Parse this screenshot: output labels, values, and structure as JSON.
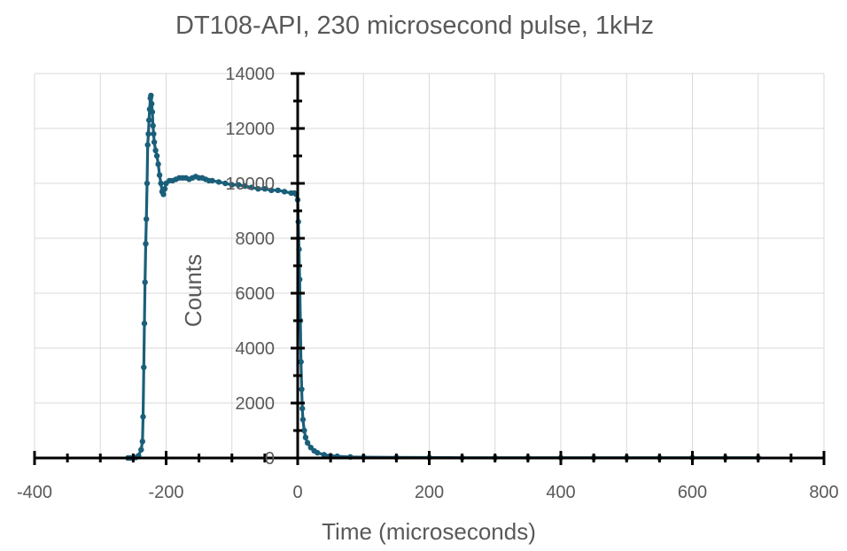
{
  "chart_data": {
    "type": "scatter",
    "title": "DT108-API, 230 microsecond pulse, 1kHz",
    "xlabel": "Time (microseconds)",
    "ylabel": "Counts",
    "xlim": [
      -400,
      800
    ],
    "ylim": [
      0,
      14000
    ],
    "x_ticks": [
      "-400",
      "-200",
      "0",
      "200",
      "400",
      "600",
      "800"
    ],
    "y_ticks": [
      "0",
      "2000",
      "4000",
      "6000",
      "8000",
      "10000",
      "12000",
      "14000"
    ],
    "grid": true,
    "legend": "none",
    "line_color": "#1a5f7a",
    "series": [
      {
        "x": [
          -258,
          -254,
          -250,
          -246,
          -242,
          -238,
          -236,
          -235,
          -234,
          -233,
          -232,
          -231,
          -230,
          -229,
          -228,
          -227,
          -226,
          -225,
          -224,
          -223,
          -222,
          -221,
          -220,
          -219,
          -218,
          -216,
          -214,
          -212,
          -210,
          -208,
          -206,
          -204,
          -202,
          -200,
          -195,
          -190,
          -185,
          -180,
          -175,
          -170,
          -165,
          -160,
          -155,
          -150,
          -145,
          -140,
          -135,
          -130,
          -120,
          -110,
          -100,
          -90,
          -80,
          -70,
          -60,
          -50,
          -40,
          -30,
          -20,
          -10,
          -5,
          -2,
          0,
          1,
          2,
          3,
          4,
          5,
          6,
          7,
          8,
          10,
          12,
          15,
          20,
          25,
          30,
          40,
          50,
          60,
          80,
          100,
          150,
          200,
          250,
          300,
          350,
          400,
          450,
          500,
          550,
          600,
          650,
          700
        ],
        "y": [
          0,
          0,
          0,
          20,
          80,
          300,
          600,
          1500,
          3300,
          4900,
          6400,
          7800,
          8700,
          10000,
          11400,
          11800,
          12300,
          12700,
          13100,
          13200,
          12900,
          12600,
          12100,
          11800,
          11500,
          11200,
          11000,
          10700,
          10300,
          10000,
          9700,
          9600,
          9800,
          10000,
          10100,
          10100,
          10150,
          10200,
          10200,
          10200,
          10150,
          10200,
          10250,
          10200,
          10200,
          10150,
          10100,
          10100,
          10050,
          10000,
          9950,
          9950,
          9900,
          9850,
          9800,
          9800,
          9750,
          9750,
          9700,
          9650,
          9650,
          9600,
          9400,
          8600,
          7600,
          6500,
          5000,
          3500,
          2500,
          1800,
          1400,
          1000,
          750,
          550,
          380,
          260,
          190,
          120,
          80,
          60,
          40,
          30,
          20,
          15,
          10,
          10,
          10,
          10,
          10,
          10,
          10,
          10,
          10,
          10
        ]
      }
    ]
  }
}
